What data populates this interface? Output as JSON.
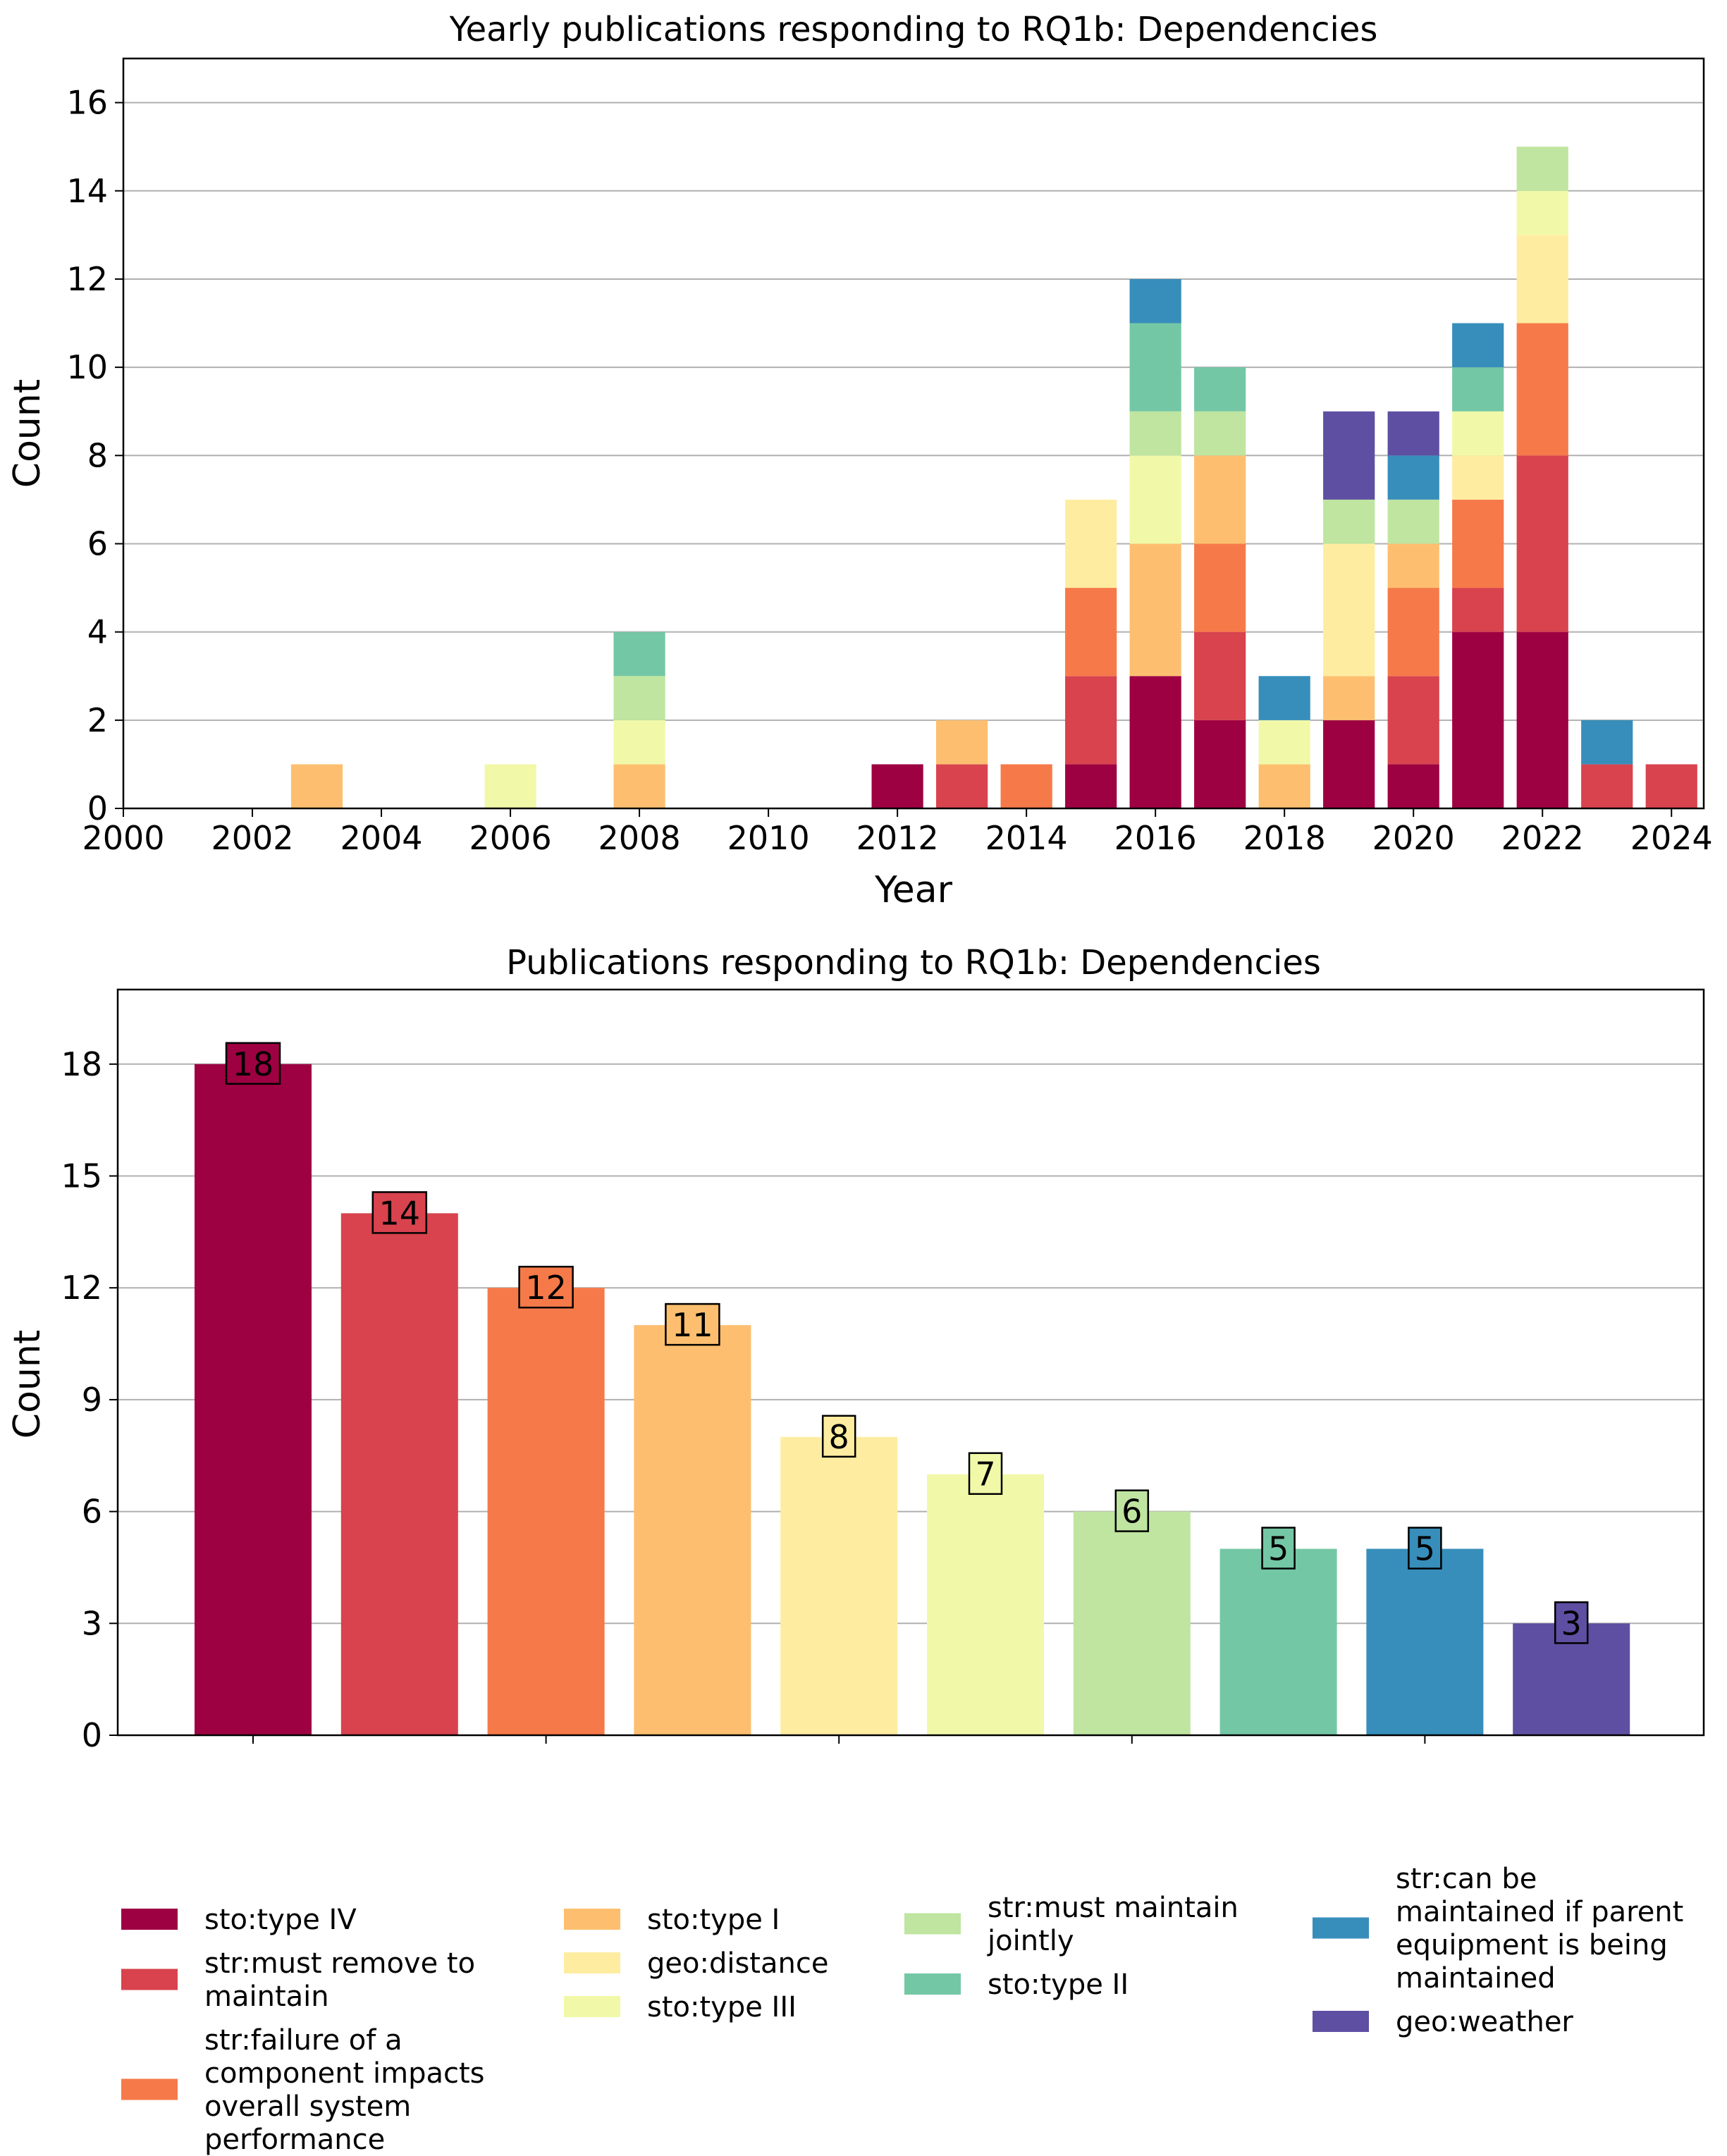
{
  "categories": [
    {
      "name": "sto:type IV",
      "color": "#9e0142"
    },
    {
      "name": "str:must remove to maintain",
      "color": "#d8434e"
    },
    {
      "name": "str:failure of a component impacts overall system performance",
      "color": "#f67a49"
    },
    {
      "name": "sto:type I",
      "color": "#fdbf6f"
    },
    {
      "name": "geo:distance",
      "color": "#feeda1"
    },
    {
      "name": "sto:type III",
      "color": "#f1f9a9"
    },
    {
      "name": "str:must maintain jointly",
      "color": "#bfe5a0"
    },
    {
      "name": "sto:type II",
      "color": "#74c7a5"
    },
    {
      "name": "str:can be maintained if parent equipment is being maintained",
      "color": "#378ebb"
    },
    {
      "name": "geo:weather",
      "color": "#5e4fa2"
    }
  ],
  "chart_data": [
    {
      "type": "bar",
      "stacked": true,
      "title": "Yearly publications responding to RQ1b: Dependencies",
      "xlabel": "Year",
      "ylabel": "Count",
      "xlim": [
        2000,
        2024.5
      ],
      "ylim": [
        0,
        17
      ],
      "xticks": [
        2000,
        2002,
        2004,
        2006,
        2008,
        2010,
        2012,
        2014,
        2016,
        2018,
        2020,
        2022,
        2024
      ],
      "yticks": [
        0,
        2,
        4,
        6,
        8,
        10,
        12,
        14,
        16
      ],
      "grid": "horizontal",
      "years": [
        2003,
        2006,
        2008,
        2012,
        2013,
        2014,
        2015,
        2016,
        2017,
        2018,
        2019,
        2020,
        2021,
        2022,
        2023,
        2024
      ],
      "series": [
        {
          "name": "sto:type IV",
          "values": [
            0,
            0,
            0,
            1,
            0,
            0,
            1,
            3,
            2,
            0,
            2,
            1,
            4,
            4,
            0,
            0
          ]
        },
        {
          "name": "str:must remove to maintain",
          "values": [
            0,
            0,
            0,
            0,
            1,
            0,
            2,
            0,
            2,
            0,
            0,
            2,
            1,
            4,
            1,
            1
          ]
        },
        {
          "name": "str:failure of a component impacts overall system performance",
          "values": [
            0,
            0,
            0,
            0,
            0,
            1,
            2,
            0,
            2,
            0,
            0,
            2,
            2,
            3,
            0,
            0
          ]
        },
        {
          "name": "sto:type I",
          "values": [
            1,
            0,
            1,
            0,
            1,
            0,
            0,
            3,
            2,
            1,
            1,
            1,
            0,
            0,
            0,
            0
          ]
        },
        {
          "name": "geo:distance",
          "values": [
            0,
            0,
            0,
            0,
            0,
            0,
            2,
            0,
            0,
            0,
            3,
            0,
            1,
            2,
            0,
            0
          ]
        },
        {
          "name": "sto:type III",
          "values": [
            0,
            1,
            1,
            0,
            0,
            0,
            0,
            2,
            0,
            1,
            0,
            0,
            1,
            1,
            0,
            0
          ]
        },
        {
          "name": "str:must maintain jointly",
          "values": [
            0,
            0,
            1,
            0,
            0,
            0,
            0,
            1,
            1,
            0,
            1,
            1,
            0,
            1,
            0,
            0
          ]
        },
        {
          "name": "sto:type II",
          "values": [
            0,
            0,
            1,
            0,
            0,
            0,
            0,
            2,
            1,
            0,
            0,
            0,
            1,
            0,
            0,
            0
          ]
        },
        {
          "name": "str:can be maintained if parent equipment is being maintained",
          "values": [
            0,
            0,
            0,
            0,
            0,
            0,
            0,
            1,
            0,
            1,
            0,
            1,
            1,
            0,
            1,
            0
          ]
        },
        {
          "name": "geo:weather",
          "values": [
            0,
            0,
            0,
            0,
            0,
            0,
            0,
            0,
            0,
            0,
            2,
            1,
            0,
            0,
            0,
            0
          ]
        }
      ]
    },
    {
      "type": "bar",
      "title": "Publications responding to RQ1b: Dependencies",
      "xlabel": "",
      "ylabel": "Count",
      "ylim": [
        0,
        20
      ],
      "yticks": [
        0,
        3,
        6,
        9,
        12,
        15,
        18
      ],
      "grid": "horizontal",
      "categories": [
        "sto:type IV",
        "str:must remove to maintain",
        "str:failure of a component impacts overall system performance",
        "sto:type I",
        "geo:distance",
        "sto:type III",
        "str:must maintain jointly",
        "sto:type II",
        "str:can be maintained if parent equipment is being maintained",
        "geo:weather"
      ],
      "values": [
        18,
        14,
        12,
        11,
        8,
        7,
        6,
        5,
        5,
        3
      ],
      "value_labels": [
        "18",
        "14",
        "12",
        "11",
        "8",
        "7",
        "6",
        "5",
        "5",
        "3"
      ]
    }
  ],
  "legend": {
    "placement": "bottom",
    "columns": [
      [
        {
          "cat": 0,
          "lines": [
            "sto:type IV"
          ]
        },
        {
          "cat": 1,
          "lines": [
            "str:must remove to",
            "maintain"
          ]
        },
        {
          "cat": 2,
          "lines": [
            "str:failure of a",
            "component impacts",
            "overall system",
            "performance"
          ]
        }
      ],
      [
        {
          "cat": 3,
          "lines": [
            "sto:type I"
          ]
        },
        {
          "cat": 4,
          "lines": [
            "geo:distance"
          ]
        },
        {
          "cat": 5,
          "lines": [
            "sto:type III"
          ]
        }
      ],
      [
        {
          "cat": 6,
          "lines": [
            "str:must maintain",
            "jointly"
          ]
        },
        {
          "cat": 7,
          "lines": [
            "sto:type II"
          ]
        }
      ],
      [
        {
          "cat": 8,
          "lines": [
            "str:can be",
            "maintained if parent",
            "equipment is being",
            "maintained"
          ]
        },
        {
          "cat": 9,
          "lines": [
            "geo:weather"
          ]
        }
      ]
    ]
  }
}
